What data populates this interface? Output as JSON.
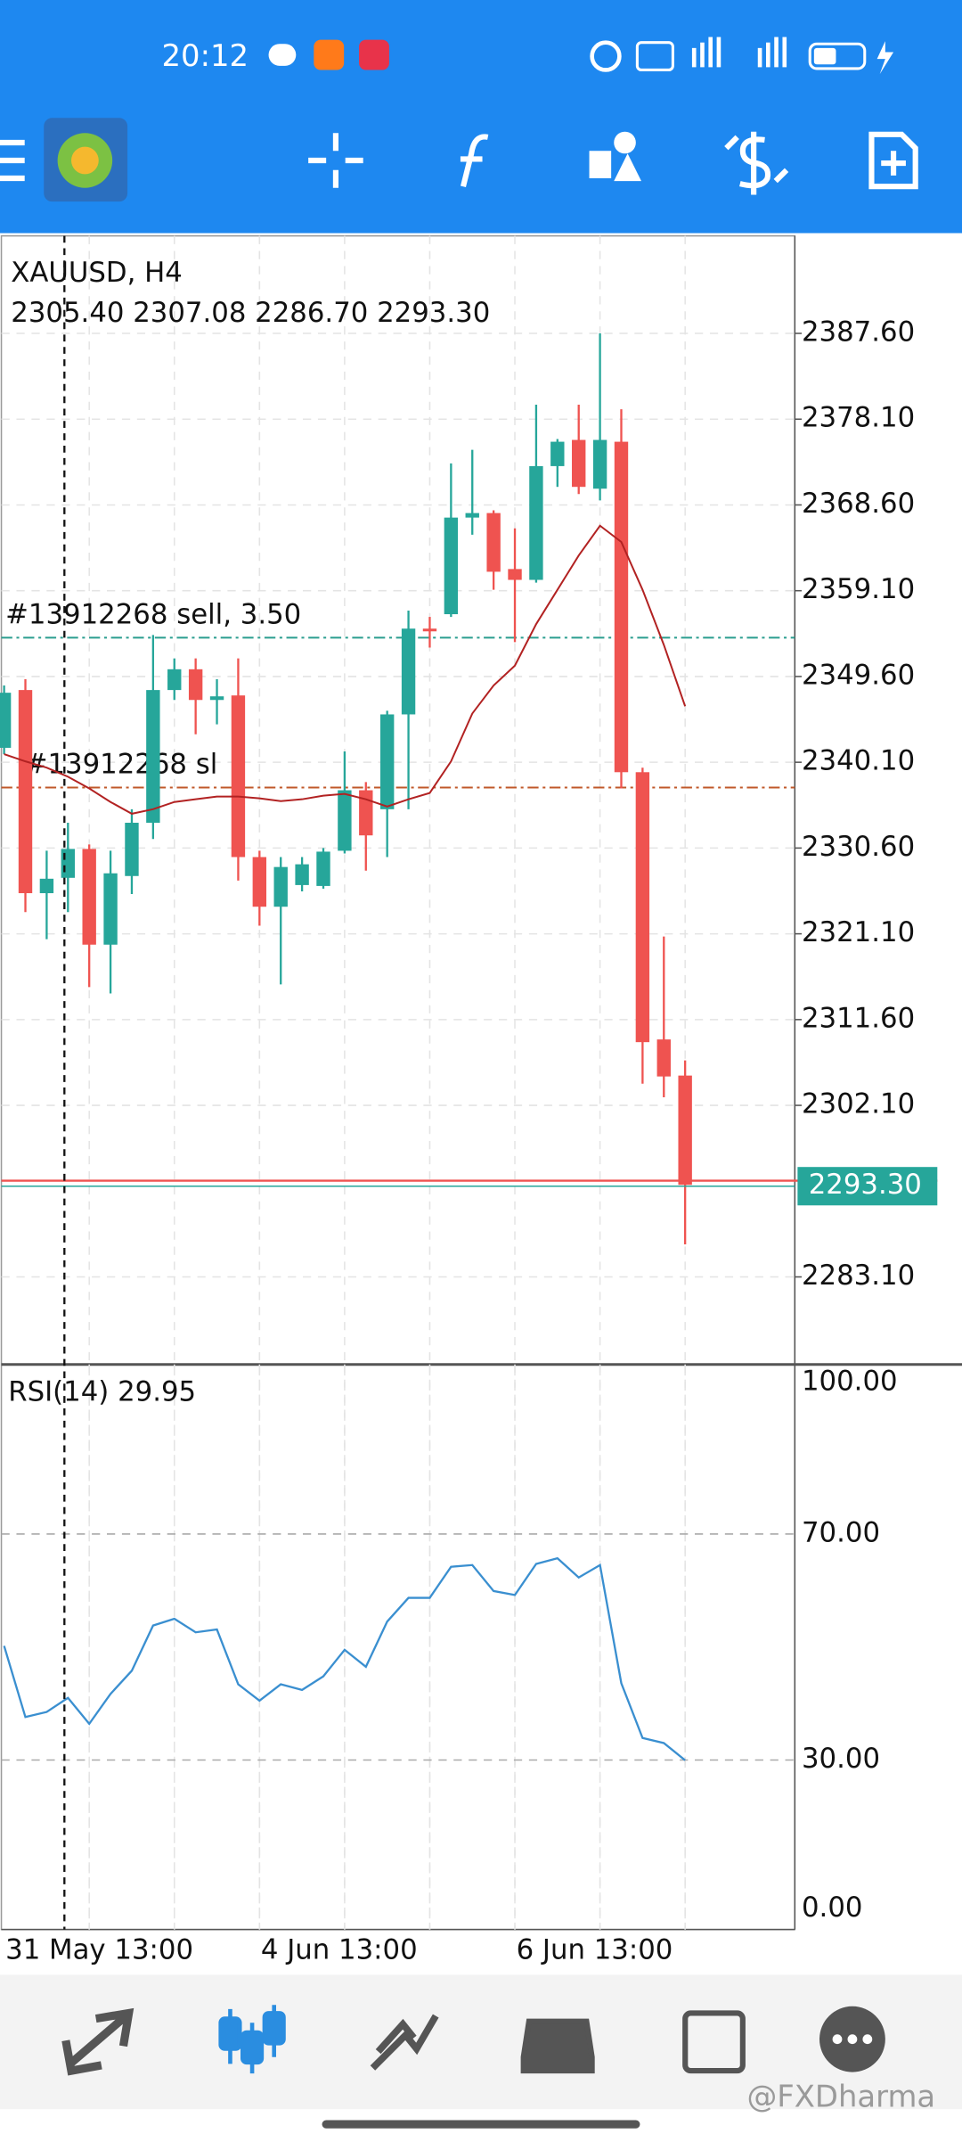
{
  "status_bar": {
    "time": "20:12"
  },
  "watermark": "@FXDharma",
  "chart_data": [
    {
      "type": "candlestick",
      "title": "XAUUSD, H4",
      "subtitle": "2305.40 2307.08 2286.70 2293.30",
      "categories": [
        "31 May 13:00",
        null,
        null,
        null,
        null,
        null,
        null,
        null,
        null,
        null,
        null,
        null,
        "4 Jun 13:00",
        null,
        null,
        null,
        null,
        null,
        null,
        null,
        null,
        null,
        null,
        null,
        "6 Jun 13:00",
        null,
        null,
        null,
        null,
        null,
        null,
        null,
        null
      ],
      "open": [
        2341.7,
        2348.1,
        2325.6,
        2327.3,
        2330.5,
        2319.9,
        2327.5,
        2333.4,
        2348.1,
        2350.4,
        2347.0,
        2347.5,
        2329.6,
        2324.1,
        2326.5,
        2326.4,
        2330.3,
        2337.0,
        2334.9,
        2345.4,
        2354.9,
        2356.5,
        2367.2,
        2367.7,
        2361.5,
        2360.3,
        2372.9,
        2375.8,
        2370.4,
        2375.6,
        2339.0,
        2309.4,
        2305.4
      ],
      "high": [
        2348.6,
        2349.3,
        2330.3,
        2333.4,
        2331.0,
        2330.3,
        2334.9,
        2354.2,
        2351.6,
        2351.6,
        2349.3,
        2351.6,
        2330.3,
        2329.6,
        2329.6,
        2330.6,
        2341.3,
        2337.9,
        2345.8,
        2356.9,
        2356.2,
        2373.2,
        2374.7,
        2368.0,
        2366.0,
        2379.7,
        2375.9,
        2379.7,
        2387.6,
        2379.2,
        2339.5,
        2320.8,
        2307.08
      ],
      "low": [
        2341.0,
        2323.5,
        2320.5,
        2323.5,
        2315.2,
        2314.5,
        2325.5,
        2331.6,
        2347.0,
        2343.2,
        2344.3,
        2327.0,
        2322.0,
        2315.5,
        2325.8,
        2326.1,
        2330.0,
        2328.1,
        2329.6,
        2334.9,
        2352.8,
        2356.2,
        2365.3,
        2359.2,
        2353.4,
        2360.0,
        2370.6,
        2369.8,
        2369.1,
        2337.2,
        2304.5,
        2303.0,
        2286.7
      ],
      "close": [
        2347.8,
        2325.6,
        2327.2,
        2330.5,
        2319.9,
        2327.8,
        2333.4,
        2348.1,
        2350.4,
        2347.0,
        2347.4,
        2329.6,
        2324.1,
        2328.5,
        2328.8,
        2330.2,
        2337.0,
        2332.0,
        2345.4,
        2354.9,
        2354.6,
        2367.2,
        2367.7,
        2361.2,
        2360.3,
        2372.9,
        2375.6,
        2370.6,
        2375.8,
        2339.0,
        2309.1,
        2305.3,
        2293.3
      ],
      "ma_values": [
        2341.0,
        2340.2,
        2339.5,
        2338.5,
        2337.2,
        2335.7,
        2334.4,
        2334.9,
        2335.7,
        2336.0,
        2336.3,
        2336.3,
        2336.1,
        2335.8,
        2336.0,
        2336.4,
        2336.6,
        2336.0,
        2335.2,
        2336.0,
        2336.7,
        2340.2,
        2345.5,
        2348.6,
        2350.8,
        2355.4,
        2359.2,
        2363.0,
        2366.3,
        2364.5,
        2359.2,
        2353.1,
        2346.3
      ],
      "ma_color": "#b22222",
      "up_color": "#26a69a",
      "down_color": "#ef5350",
      "ylim": [
        2273.4,
        2398.4
      ],
      "yticks": [
        {
          "value": 2283.1,
          "label": "2283.10"
        },
        {
          "value": 2302.1,
          "label": "2302.10"
        },
        {
          "value": 2311.6,
          "label": "2311.60"
        },
        {
          "value": 2321.1,
          "label": "2321.10"
        },
        {
          "value": 2330.6,
          "label": "2330.60"
        },
        {
          "value": 2340.1,
          "label": "2340.10"
        },
        {
          "value": 2349.6,
          "label": "2349.60"
        },
        {
          "value": 2359.1,
          "label": "2359.10"
        },
        {
          "value": 2368.6,
          "label": "2368.60"
        },
        {
          "value": 2378.1,
          "label": "2378.10"
        },
        {
          "value": 2387.6,
          "label": "2387.60"
        }
      ],
      "grid": true,
      "price_lines": [
        {
          "label": "#13912268 sell, 3.50",
          "value": 2353.9,
          "color": "#2a9d8f"
        },
        {
          "label": "#13912268 sl",
          "value": 2337.3,
          "color": "#c0582a"
        }
      ],
      "last_price": {
        "value": 2293.3,
        "label": "2293.30",
        "color": "#26a69a"
      }
    },
    {
      "type": "line",
      "title": "RSI(14) 29.95",
      "color": "#3a8fd0",
      "values": [
        50.2,
        37.6,
        38.5,
        41.0,
        36.4,
        41.7,
        45.8,
        53.8,
        55.0,
        52.6,
        53.1,
        43.4,
        40.5,
        43.4,
        42.4,
        44.8,
        49.5,
        46.5,
        54.5,
        58.7,
        58.7,
        64.2,
        64.5,
        59.9,
        59.2,
        64.7,
        65.7,
        62.3,
        64.5,
        43.6,
        33.9,
        33.0,
        29.95
      ],
      "ylim": [
        0,
        100
      ],
      "yticks": [
        {
          "value": 0,
          "label": "0.00"
        },
        {
          "value": 30,
          "label": "30.00"
        },
        {
          "value": 70,
          "label": "70.00"
        },
        {
          "value": 100,
          "label": "100.00"
        }
      ]
    }
  ]
}
